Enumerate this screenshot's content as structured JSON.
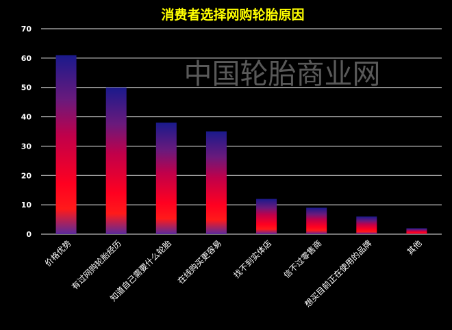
{
  "chart_data": {
    "type": "bar",
    "title": "消费者选择网购轮胎原因",
    "watermark": "中国轮胎商业网",
    "categories": [
      "价格优势",
      "有过网购轮胎经历",
      "知道自己需要什么轮胎",
      "在线购买更容易",
      "找不到实体店",
      "信不过零售商",
      "想买目前正在使用的品牌",
      "其他"
    ],
    "values": [
      61,
      50,
      38,
      35,
      12,
      9,
      6,
      2
    ],
    "ylim": [
      0,
      70
    ],
    "yticks": [
      0,
      10,
      20,
      30,
      40,
      50,
      60,
      70
    ],
    "grid": true,
    "legend": "none",
    "colors": {
      "background": "#000000",
      "title": "#ffff00",
      "bar_top": "#1a1a8c",
      "bar_mid": "#c0004a",
      "bar_low": "#ff0020",
      "bar_base": "#5a2a9c"
    }
  }
}
